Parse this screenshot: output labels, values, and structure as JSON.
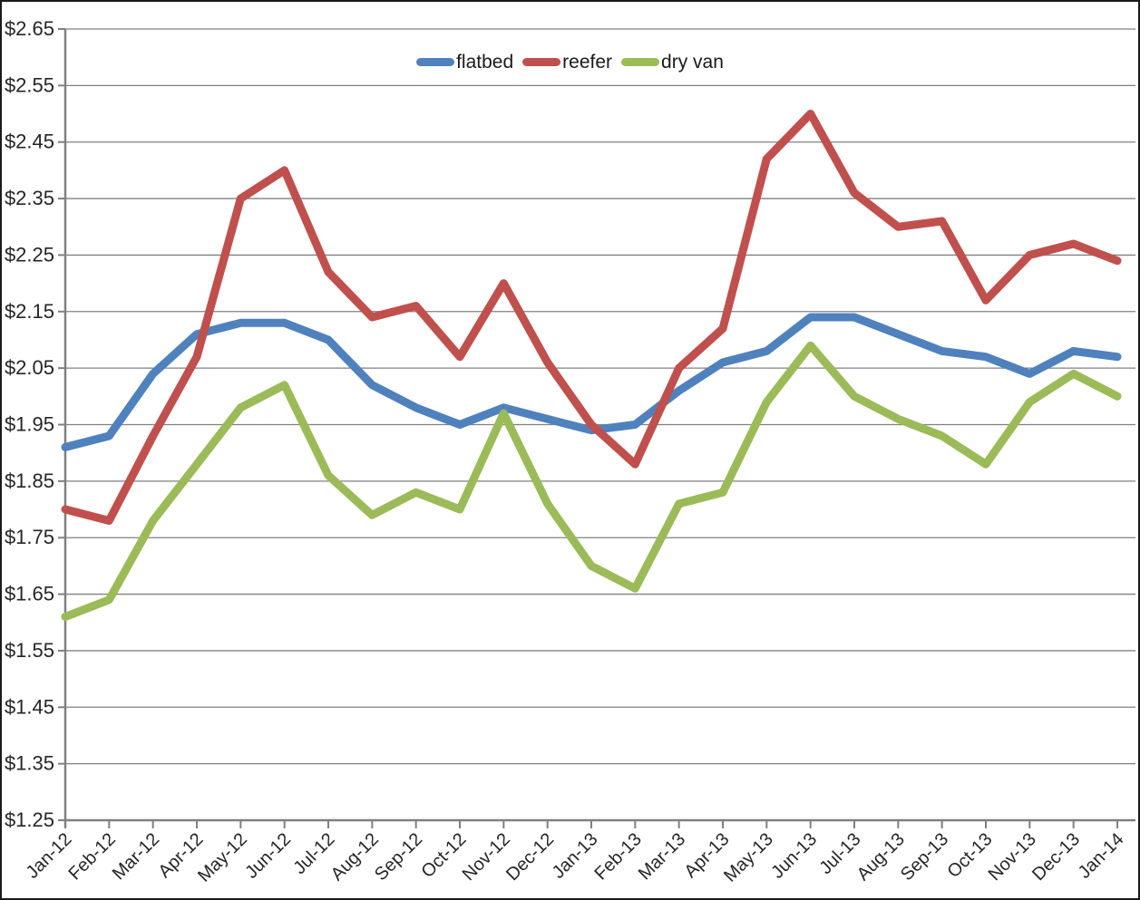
{
  "chart_data": {
    "type": "line",
    "title": "",
    "xlabel": "",
    "ylabel": "",
    "x_categories": [
      "Jan-12",
      "Feb-12",
      "Mar-12",
      "Apr-12",
      "May-12",
      "Jun-12",
      "Jul-12",
      "Aug-12",
      "Sep-12",
      "Oct-12",
      "Nov-12",
      "Dec-12",
      "Jan-13",
      "Feb-13",
      "Mar-13",
      "Apr-13",
      "May-13",
      "Jun-13",
      "Jul-13",
      "Aug-13",
      "Sep-13",
      "Oct-13",
      "Nov-13",
      "Dec-13",
      "Jan-14"
    ],
    "y_axis": {
      "min": 1.25,
      "max": 2.65,
      "step": 0.1,
      "tick_labels": [
        "$1.25",
        "$1.35",
        "$1.45",
        "$1.55",
        "$1.65",
        "$1.75",
        "$1.85",
        "$1.95",
        "$2.05",
        "$2.15",
        "$2.25",
        "$2.35",
        "$2.45",
        "$2.55",
        "$2.65"
      ]
    },
    "grid": true,
    "legend_position": "top-center",
    "series": [
      {
        "name": "flatbed",
        "color": "#4F81BD",
        "values": [
          1.91,
          1.93,
          2.04,
          2.11,
          2.13,
          2.13,
          2.1,
          2.02,
          1.98,
          1.95,
          1.98,
          1.96,
          1.94,
          1.95,
          2.01,
          2.06,
          2.08,
          2.14,
          2.14,
          2.11,
          2.08,
          2.07,
          2.04,
          2.08,
          2.07
        ]
      },
      {
        "name": "reefer",
        "color": "#C0504D",
        "values": [
          1.8,
          1.78,
          1.93,
          2.07,
          2.35,
          2.4,
          2.22,
          2.14,
          2.16,
          2.07,
          2.2,
          2.06,
          1.95,
          1.88,
          2.05,
          2.12,
          2.42,
          2.5,
          2.36,
          2.3,
          2.31,
          2.17,
          2.25,
          2.27,
          2.24
        ]
      },
      {
        "name": "dry van",
        "color": "#9BBB59",
        "values": [
          1.61,
          1.64,
          1.78,
          1.88,
          1.98,
          2.02,
          1.86,
          1.79,
          1.83,
          1.8,
          1.97,
          1.81,
          1.7,
          1.66,
          1.81,
          1.83,
          1.99,
          2.09,
          2.0,
          1.96,
          1.93,
          1.88,
          1.99,
          2.04,
          2.0
        ]
      }
    ],
    "axis_color": "#808080",
    "gridline_color": "#808080",
    "text_color": "#262626"
  }
}
